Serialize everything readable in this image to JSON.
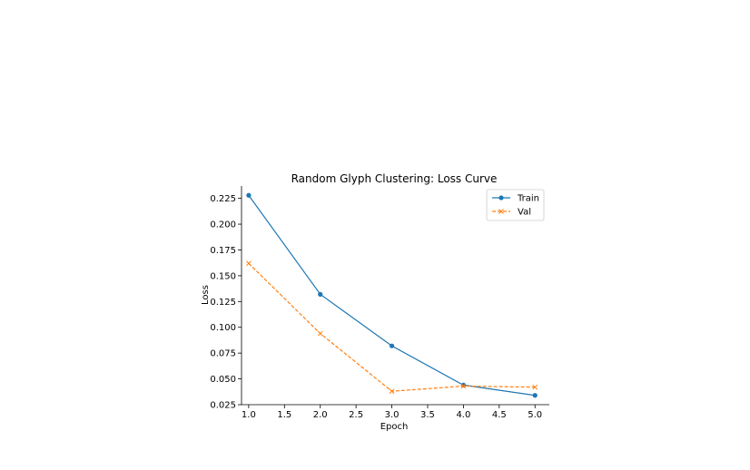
{
  "chart_data": {
    "type": "line",
    "title": "Random Glyph Clustering: Loss Curve",
    "xlabel": "Epoch",
    "ylabel": "Loss",
    "x": [
      1,
      2,
      3,
      4,
      5
    ],
    "xlim": [
      0.9,
      5.2
    ],
    "ylim": [
      0.025,
      0.237
    ],
    "xticks": [
      1.0,
      1.5,
      2.0,
      2.5,
      3.0,
      3.5,
      4.0,
      4.5,
      5.0
    ],
    "xtick_labels": [
      "1.0",
      "1.5",
      "2.0",
      "2.5",
      "3.0",
      "3.5",
      "4.0",
      "4.5",
      "5.0"
    ],
    "yticks": [
      0.025,
      0.05,
      0.075,
      0.1,
      0.125,
      0.15,
      0.175,
      0.2,
      0.225
    ],
    "ytick_labels": [
      "0.025",
      "0.050",
      "0.075",
      "0.100",
      "0.125",
      "0.150",
      "0.175",
      "0.200",
      "0.225"
    ],
    "grid": false,
    "legend_position": "top-right",
    "series": [
      {
        "name": "Train",
        "values": [
          0.228,
          0.132,
          0.082,
          0.044,
          0.034
        ],
        "color": "#1f77b4",
        "line_style": "solid",
        "marker": "circle"
      },
      {
        "name": "Val",
        "values": [
          0.162,
          0.094,
          0.038,
          0.043,
          0.042
        ],
        "color": "#ff7f0e",
        "line_style": "dashed",
        "marker": "x"
      }
    ]
  }
}
